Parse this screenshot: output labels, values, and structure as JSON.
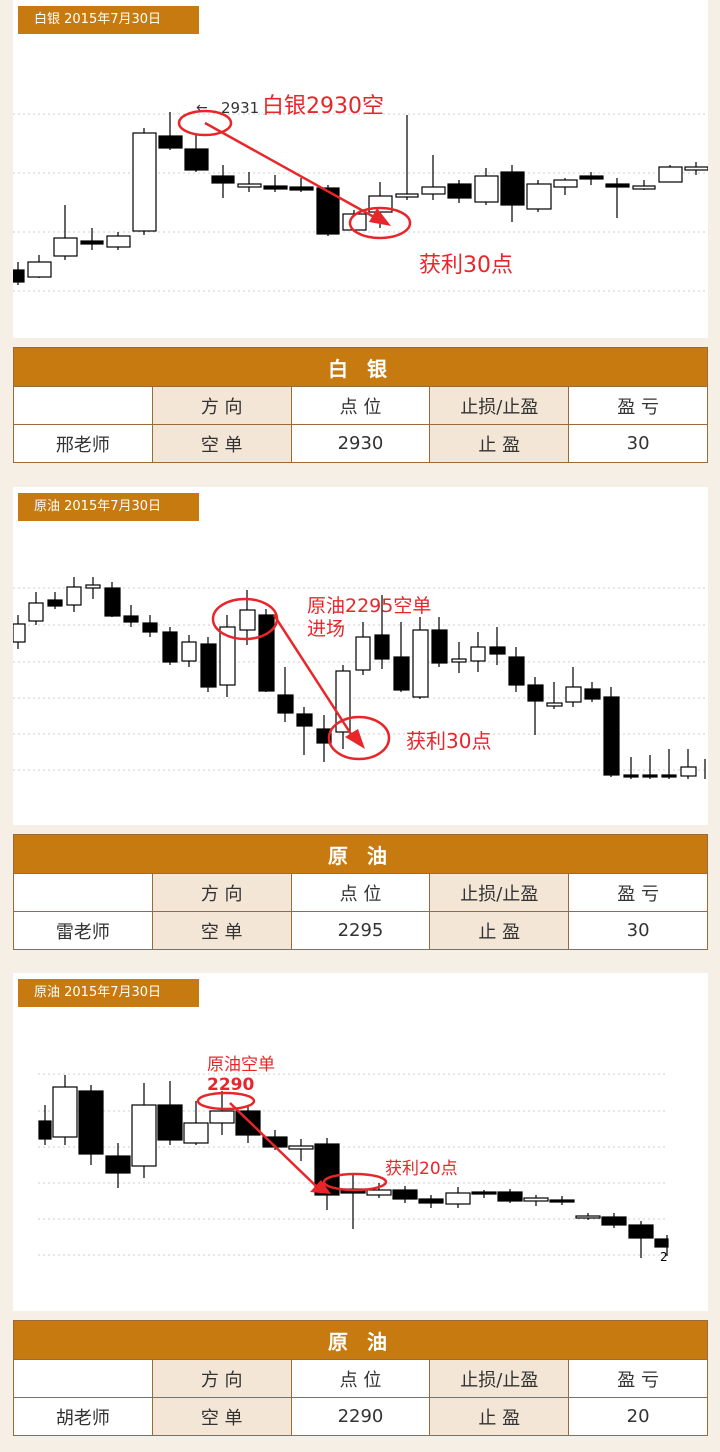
{
  "sections": [
    {
      "date_tag": "白银 2015年7月30日",
      "annotations": {
        "price_label": "2931",
        "entry": "白银2930空",
        "entry_line2": "",
        "profit": "获利30点",
        "small_label": ""
      },
      "table": {
        "title": "白 银",
        "headers": [
          "",
          "方 向",
          "点 位",
          "止损/止盈",
          "盈 亏"
        ],
        "row": [
          "邢老师",
          "空 单",
          "2930",
          "止 盈",
          "30"
        ]
      }
    },
    {
      "date_tag": "原油 2015年7月30日",
      "annotations": {
        "price_label": "",
        "entry": "原油2295空单",
        "entry_line2": "进场",
        "profit": "获利30点",
        "small_label": ""
      },
      "table": {
        "title": "原 油",
        "headers": [
          "",
          "方 向",
          "点 位",
          "止损/止盈",
          "盈 亏"
        ],
        "row": [
          "雷老师",
          "空 单",
          "2295",
          "止 盈",
          "30"
        ]
      }
    },
    {
      "date_tag": "原油 2015年7月30日",
      "annotations": {
        "price_label": "",
        "entry": "原油空单",
        "entry_line2": "2290",
        "profit": "获利20点",
        "small_label": "2"
      },
      "table": {
        "title": "原 油",
        "headers": [
          "",
          "方 向",
          "点 位",
          "止损/止盈",
          "盈 亏"
        ],
        "row": [
          "胡老师",
          "空 单",
          "2290",
          "止 盈",
          "20"
        ]
      }
    }
  ],
  "colors": {
    "accent": "#c77a10",
    "annotation": "#e8262a",
    "shade": "#f3e6d6"
  }
}
